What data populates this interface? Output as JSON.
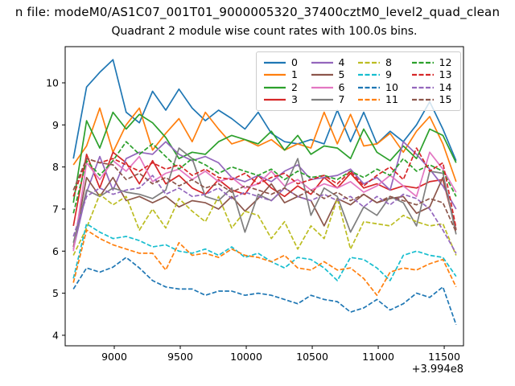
{
  "titles": {
    "file_line": "n file: modeM0/AS1C07_001T01_9000005320_37400cztM0_level2_quad_clean",
    "axes_line": "Quadrant 2 module wise count rates with 100.0s bins."
  },
  "chart_data": {
    "type": "line",
    "title": "Quadrant 2 module wise count rates with 100.0s bins.",
    "xlabel": "",
    "ylabel": "",
    "grid": false,
    "legend_position": "upper right",
    "legend_columns": 4,
    "x_offset_label": "+3.994e8",
    "xlim": [
      8628,
      11646
    ],
    "ylim": [
      3.75,
      10.86
    ],
    "x_ticks": [
      9000,
      9500,
      10000,
      10500,
      11000,
      11500
    ],
    "y_ticks": [
      4,
      5,
      6,
      7,
      8,
      9,
      10
    ],
    "x": [
      8690,
      8790,
      8890,
      8990,
      9090,
      9190,
      9290,
      9390,
      9490,
      9590,
      9690,
      9790,
      9890,
      9990,
      10090,
      10190,
      10290,
      10390,
      10490,
      10590,
      10690,
      10790,
      10890,
      10990,
      11090,
      11190,
      11290,
      11390,
      11490,
      11590
    ],
    "series": [
      {
        "name": "0",
        "color": "#1f77b4",
        "dash": false,
        "values": [
          8.2,
          9.9,
          10.25,
          10.55,
          9.3,
          9.05,
          9.8,
          9.35,
          9.85,
          9.4,
          9.1,
          9.35,
          9.15,
          8.9,
          9.3,
          8.8,
          8.6,
          8.55,
          8.65,
          8.55,
          9.35,
          8.6,
          9.3,
          8.55,
          8.85,
          8.6,
          9.0,
          9.55,
          8.9,
          8.15
        ]
      },
      {
        "name": "1",
        "color": "#ff7f0e",
        "dash": false,
        "values": [
          8.05,
          8.5,
          9.4,
          8.35,
          9.0,
          9.4,
          8.4,
          8.8,
          9.15,
          8.6,
          9.3,
          8.9,
          8.55,
          8.65,
          8.5,
          8.65,
          8.4,
          8.55,
          8.45,
          9.3,
          8.55,
          9.25,
          8.5,
          8.55,
          8.8,
          8.35,
          8.85,
          9.2,
          8.55,
          7.65
        ]
      },
      {
        "name": "2",
        "color": "#2ca02c",
        "dash": false,
        "values": [
          7.15,
          9.1,
          8.45,
          9.3,
          8.9,
          9.25,
          9.05,
          8.7,
          8.2,
          8.35,
          8.3,
          8.6,
          8.75,
          8.65,
          8.55,
          8.85,
          8.4,
          8.75,
          8.3,
          8.5,
          8.45,
          8.2,
          8.9,
          8.35,
          8.15,
          8.5,
          8.2,
          8.9,
          8.75,
          8.1
        ]
      },
      {
        "name": "3",
        "color": "#d62728",
        "dash": false,
        "values": [
          6.6,
          8.3,
          7.5,
          8.35,
          8.1,
          7.6,
          8.15,
          7.6,
          7.8,
          7.5,
          7.35,
          7.7,
          7.45,
          7.35,
          7.8,
          7.5,
          7.3,
          7.55,
          7.35,
          7.75,
          7.5,
          7.85,
          7.5,
          7.6,
          7.45,
          7.55,
          7.5,
          7.65,
          7.7,
          6.5
        ]
      },
      {
        "name": "4",
        "color": "#9467bd",
        "dash": false,
        "values": [
          6.05,
          7.4,
          8.25,
          7.45,
          8.2,
          8.35,
          8.3,
          8.6,
          8.3,
          8.15,
          8.25,
          8.1,
          7.75,
          7.65,
          7.8,
          7.65,
          7.9,
          8.05,
          7.7,
          7.75,
          7.8,
          7.95,
          7.6,
          7.75,
          7.45,
          8.6,
          8.3,
          7.95,
          7.55,
          7.0
        ]
      },
      {
        "name": "5",
        "color": "#8c564b",
        "dash": false,
        "values": [
          6.1,
          7.75,
          7.3,
          7.75,
          7.2,
          7.3,
          7.15,
          7.3,
          7.05,
          7.2,
          7.15,
          7.0,
          7.3,
          6.95,
          7.25,
          7.6,
          7.15,
          7.3,
          7.2,
          6.6,
          7.25,
          7.1,
          7.35,
          7.15,
          7.25,
          7.3,
          6.9,
          7.05,
          7.75,
          6.5
        ]
      },
      {
        "name": "6",
        "color": "#e377c2",
        "dash": false,
        "values": [
          6.0,
          8.1,
          7.7,
          8.15,
          7.9,
          8.25,
          7.65,
          7.85,
          7.95,
          7.7,
          7.9,
          7.65,
          7.75,
          7.5,
          7.6,
          7.9,
          7.55,
          7.7,
          7.45,
          7.6,
          7.5,
          7.65,
          7.4,
          7.55,
          7.8,
          7.55,
          7.3,
          8.35,
          7.95,
          7.4
        ]
      },
      {
        "name": "7",
        "color": "#7f7f7f",
        "dash": false,
        "values": [
          6.2,
          7.45,
          7.3,
          7.5,
          7.4,
          7.35,
          7.25,
          7.45,
          8.45,
          8.2,
          7.3,
          7.2,
          7.5,
          6.45,
          7.35,
          7.2,
          7.5,
          8.2,
          6.85,
          7.5,
          7.3,
          6.45,
          7.05,
          6.85,
          7.3,
          7.15,
          6.6,
          7.9,
          7.85,
          6.4
        ]
      },
      {
        "name": "8",
        "color": "#bcbd22",
        "dash": true,
        "values": [
          5.9,
          6.55,
          7.35,
          7.1,
          7.3,
          6.5,
          7.0,
          6.55,
          7.25,
          6.95,
          6.7,
          7.3,
          6.55,
          6.95,
          6.85,
          6.3,
          6.7,
          6.05,
          6.6,
          6.3,
          7.25,
          6.05,
          6.7,
          6.65,
          6.6,
          6.85,
          6.7,
          6.6,
          6.65,
          5.9
        ]
      },
      {
        "name": "9",
        "color": "#17becf",
        "dash": true,
        "values": [
          5.35,
          6.65,
          6.45,
          6.3,
          6.35,
          6.25,
          6.1,
          6.15,
          6.0,
          5.95,
          6.05,
          5.9,
          6.1,
          5.85,
          5.95,
          5.75,
          5.6,
          5.85,
          5.8,
          5.6,
          5.3,
          5.85,
          5.8,
          5.6,
          5.3,
          5.9,
          6.0,
          5.9,
          5.85,
          5.4
        ]
      },
      {
        "name": "10",
        "color": "#1f77b4",
        "dash": true,
        "values": [
          5.1,
          5.6,
          5.5,
          5.62,
          5.85,
          5.6,
          5.3,
          5.15,
          5.1,
          5.1,
          4.95,
          5.05,
          5.05,
          4.95,
          5.0,
          4.95,
          4.85,
          4.75,
          4.95,
          4.85,
          4.8,
          4.55,
          4.65,
          4.85,
          4.6,
          4.75,
          5.0,
          4.9,
          5.15,
          4.25
        ]
      },
      {
        "name": "11",
        "color": "#ff7f0e",
        "dash": true,
        "values": [
          5.25,
          6.5,
          6.3,
          6.15,
          6.05,
          5.95,
          5.95,
          5.55,
          6.2,
          5.9,
          5.95,
          5.85,
          6.05,
          5.9,
          5.85,
          5.75,
          5.9,
          5.6,
          5.55,
          5.75,
          5.55,
          5.6,
          5.35,
          4.95,
          5.5,
          5.6,
          5.55,
          5.7,
          5.8,
          5.15
        ]
      },
      {
        "name": "12",
        "color": "#2ca02c",
        "dash": true,
        "values": [
          6.9,
          8.15,
          7.8,
          8.15,
          8.6,
          8.3,
          8.55,
          8.25,
          7.95,
          8.2,
          8.05,
          7.85,
          8.0,
          7.9,
          7.8,
          7.95,
          7.7,
          7.9,
          7.75,
          7.8,
          7.7,
          7.9,
          7.75,
          7.95,
          7.8,
          8.2,
          7.9,
          8.05,
          7.9,
          7.3
        ]
      },
      {
        "name": "13",
        "color": "#d62728",
        "dash": true,
        "values": [
          7.3,
          8.2,
          8.1,
          8.2,
          8.05,
          7.9,
          8.1,
          7.95,
          8.05,
          7.8,
          7.95,
          7.75,
          7.7,
          7.85,
          7.6,
          7.75,
          7.85,
          7.6,
          7.7,
          7.8,
          7.6,
          7.9,
          7.55,
          7.8,
          8.0,
          7.7,
          8.45,
          7.9,
          8.1,
          6.55
        ]
      },
      {
        "name": "14",
        "color": "#9467bd",
        "dash": true,
        "values": [
          6.35,
          7.3,
          7.5,
          7.35,
          7.45,
          7.5,
          7.8,
          7.35,
          7.5,
          7.3,
          7.35,
          7.5,
          7.25,
          7.4,
          7.3,
          7.2,
          7.5,
          7.3,
          7.2,
          7.35,
          7.2,
          7.3,
          7.05,
          7.3,
          7.1,
          7.35,
          7.25,
          7.0,
          6.5,
          5.95
        ]
      },
      {
        "name": "15",
        "color": "#8c564b",
        "dash": true,
        "values": [
          7.45,
          8.2,
          8.1,
          8.05,
          7.7,
          7.85,
          7.6,
          7.75,
          7.55,
          7.7,
          7.5,
          7.6,
          7.4,
          7.55,
          7.45,
          7.35,
          7.5,
          7.3,
          7.45,
          7.25,
          7.4,
          7.2,
          7.35,
          7.15,
          7.3,
          7.2,
          7.1,
          7.25,
          7.15,
          6.45
        ]
      }
    ]
  }
}
